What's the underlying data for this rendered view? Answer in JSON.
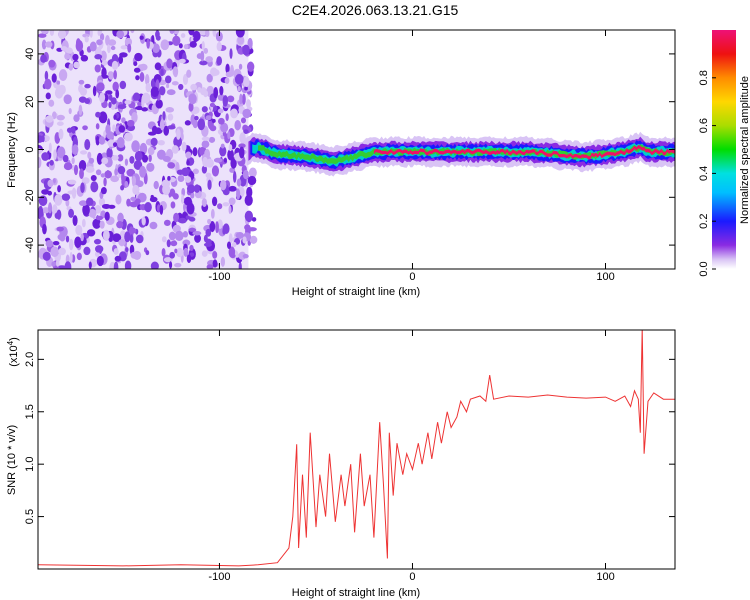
{
  "title": "C2E4.2026.063.13.21.G15",
  "chart_data": [
    {
      "type": "heatmap",
      "title": "C2E4.2026.063.13.21.G15",
      "xlabel": "Height of straight line (km)",
      "ylabel": "Frequency (Hz)",
      "xlim": [
        -194,
        136
      ],
      "ylim": [
        -50,
        50
      ],
      "xticks": [
        -100,
        0,
        100
      ],
      "yticks": [
        -40,
        -20,
        0,
        20,
        40
      ],
      "colorbar": {
        "label": "Normalized spectral amplitude",
        "range": [
          0,
          1
        ],
        "ticks": [
          "0.0",
          "0.2",
          "0.4",
          "0.6",
          "0.8"
        ]
      },
      "noise_region_km": [
        -194,
        -85
      ],
      "signal_band": {
        "x_start_km": -85,
        "x_end_km": 136,
        "center_freq_hz": [
          [
            -85,
            0
          ],
          [
            -80,
            1
          ],
          [
            -70,
            -2
          ],
          [
            -55,
            -3
          ],
          [
            -40,
            -5
          ],
          [
            -30,
            -3
          ],
          [
            -20,
            -1
          ],
          [
            0,
            -1
          ],
          [
            60,
            -1
          ],
          [
            90,
            -3
          ],
          [
            110,
            -1
          ],
          [
            118,
            1
          ],
          [
            122,
            -1
          ],
          [
            136,
            -1
          ]
        ]
      }
    },
    {
      "type": "line",
      "xlabel": "Height of straight line (km)",
      "ylabel": "SNR (10 * v/v)",
      "yscale_label": "(x10",
      "yscale_exp": "4",
      "xlim": [
        -194,
        136
      ],
      "ylim": [
        0,
        2.28
      ],
      "xticks": [
        -100,
        0,
        100
      ],
      "yticks": [
        0.5,
        1.0,
        1.5,
        2.0
      ],
      "color": "#ee3333",
      "x": [
        -194,
        -150,
        -120,
        -90,
        -80,
        -70,
        -64,
        -62,
        -60,
        -59,
        -57,
        -55,
        -53,
        -50,
        -48,
        -45,
        -43,
        -40,
        -37,
        -35,
        -32,
        -30,
        -27,
        -25,
        -22,
        -20,
        -17,
        -15,
        -13,
        -12,
        -10,
        -8,
        -5,
        -3,
        0,
        3,
        5,
        8,
        10,
        13,
        15,
        18,
        20,
        23,
        25,
        28,
        30,
        35,
        38,
        40,
        42,
        50,
        60,
        70,
        80,
        90,
        100,
        105,
        110,
        113,
        115,
        117,
        118,
        119,
        120,
        122,
        125,
        130,
        136
      ],
      "y": [
        0.04,
        0.03,
        0.04,
        0.03,
        0.04,
        0.06,
        0.2,
        0.5,
        1.19,
        0.2,
        0.9,
        0.3,
        1.3,
        0.4,
        0.9,
        0.5,
        1.1,
        0.45,
        0.9,
        0.6,
        1.0,
        0.35,
        1.1,
        0.6,
        0.9,
        0.3,
        1.4,
        0.8,
        0.1,
        1.3,
        0.7,
        1.2,
        0.9,
        1.1,
        0.95,
        1.2,
        1.0,
        1.3,
        1.05,
        1.4,
        1.2,
        1.5,
        1.35,
        1.45,
        1.6,
        1.5,
        1.62,
        1.65,
        1.6,
        1.85,
        1.62,
        1.65,
        1.64,
        1.66,
        1.64,
        1.63,
        1.64,
        1.6,
        1.65,
        1.55,
        1.7,
        1.62,
        1.3,
        2.3,
        1.1,
        1.6,
        1.68,
        1.62,
        1.62
      ]
    }
  ]
}
